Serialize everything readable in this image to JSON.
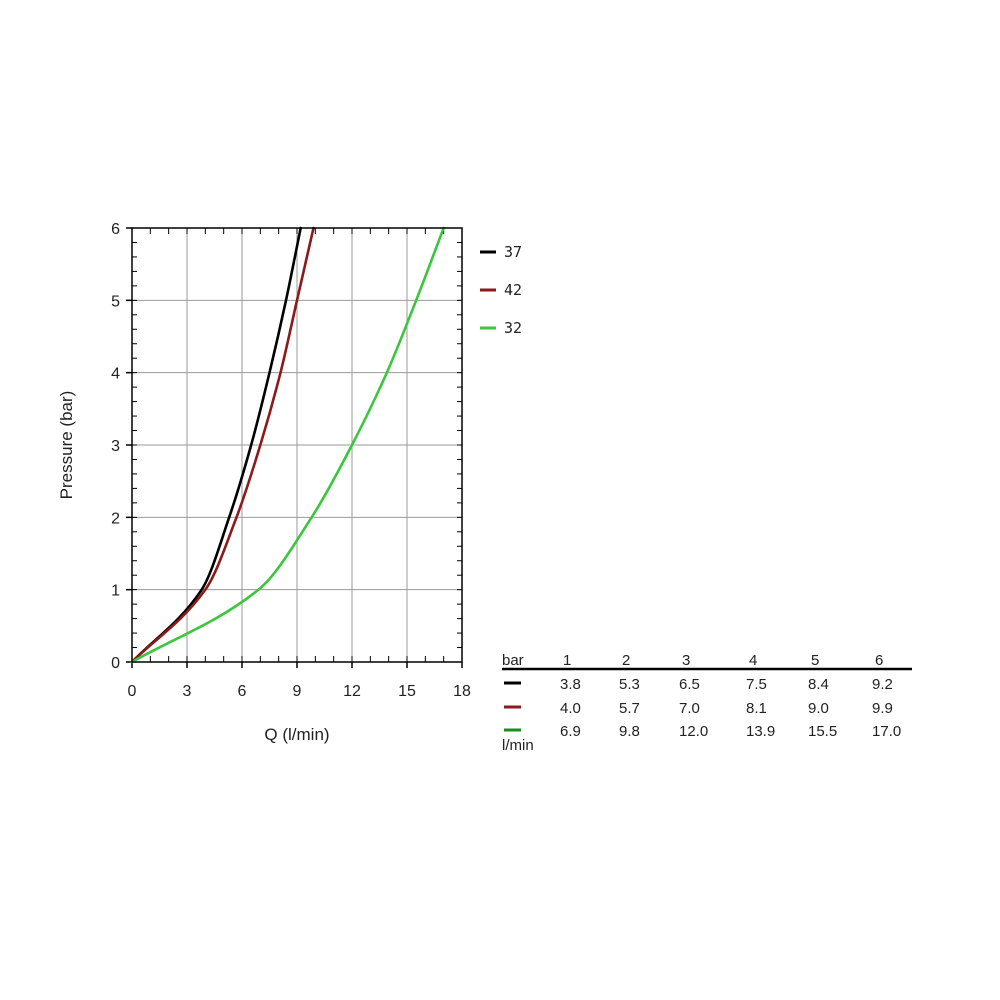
{
  "chart_data": {
    "type": "line",
    "xlabel": "Q (l/min)",
    "ylabel": "Pressure (bar)",
    "xlim": [
      0,
      18
    ],
    "ylim": [
      0,
      6
    ],
    "xticks": [
      "0",
      "3",
      "6",
      "9",
      "12",
      "15",
      "18"
    ],
    "yticks": [
      "0",
      "1",
      "2",
      "3",
      "4",
      "5",
      "6"
    ],
    "grid": true,
    "legend_position": "right",
    "series": [
      {
        "name": "37",
        "color": "#000000",
        "x": [
          0,
          3.8,
          5.3,
          6.5,
          7.5,
          8.4,
          9.2
        ],
        "y": [
          0,
          1,
          2,
          3,
          4,
          5,
          6
        ]
      },
      {
        "name": "42",
        "color": "#8b1a1a",
        "x": [
          0,
          4.0,
          5.7,
          7.0,
          8.1,
          9.0,
          9.9
        ],
        "y": [
          0,
          1,
          2,
          3,
          4,
          5,
          6
        ]
      },
      {
        "name": "32",
        "color": "#3cc63c",
        "x": [
          0,
          6.9,
          9.8,
          12.0,
          13.9,
          15.5,
          17.0
        ],
        "y": [
          0,
          1,
          2,
          3,
          4,
          5,
          6
        ]
      }
    ],
    "table": {
      "header_label": "bar",
      "unit_label": "l/min",
      "columns": [
        "1",
        "2",
        "3",
        "4",
        "5",
        "6"
      ],
      "rows": [
        {
          "color": "#000000",
          "values": [
            "3.8",
            "5.3",
            "6.5",
            "7.5",
            "8.4",
            "9.2"
          ]
        },
        {
          "color": "#8b1a1a",
          "values": [
            "4.0",
            "5.7",
            "7.0",
            "8.1",
            "9.0",
            "9.9"
          ]
        },
        {
          "color": "#1e8c1e",
          "values": [
            "6.9",
            "9.8",
            "12.0",
            "13.9",
            "15.5",
            "17.0"
          ]
        }
      ]
    }
  }
}
